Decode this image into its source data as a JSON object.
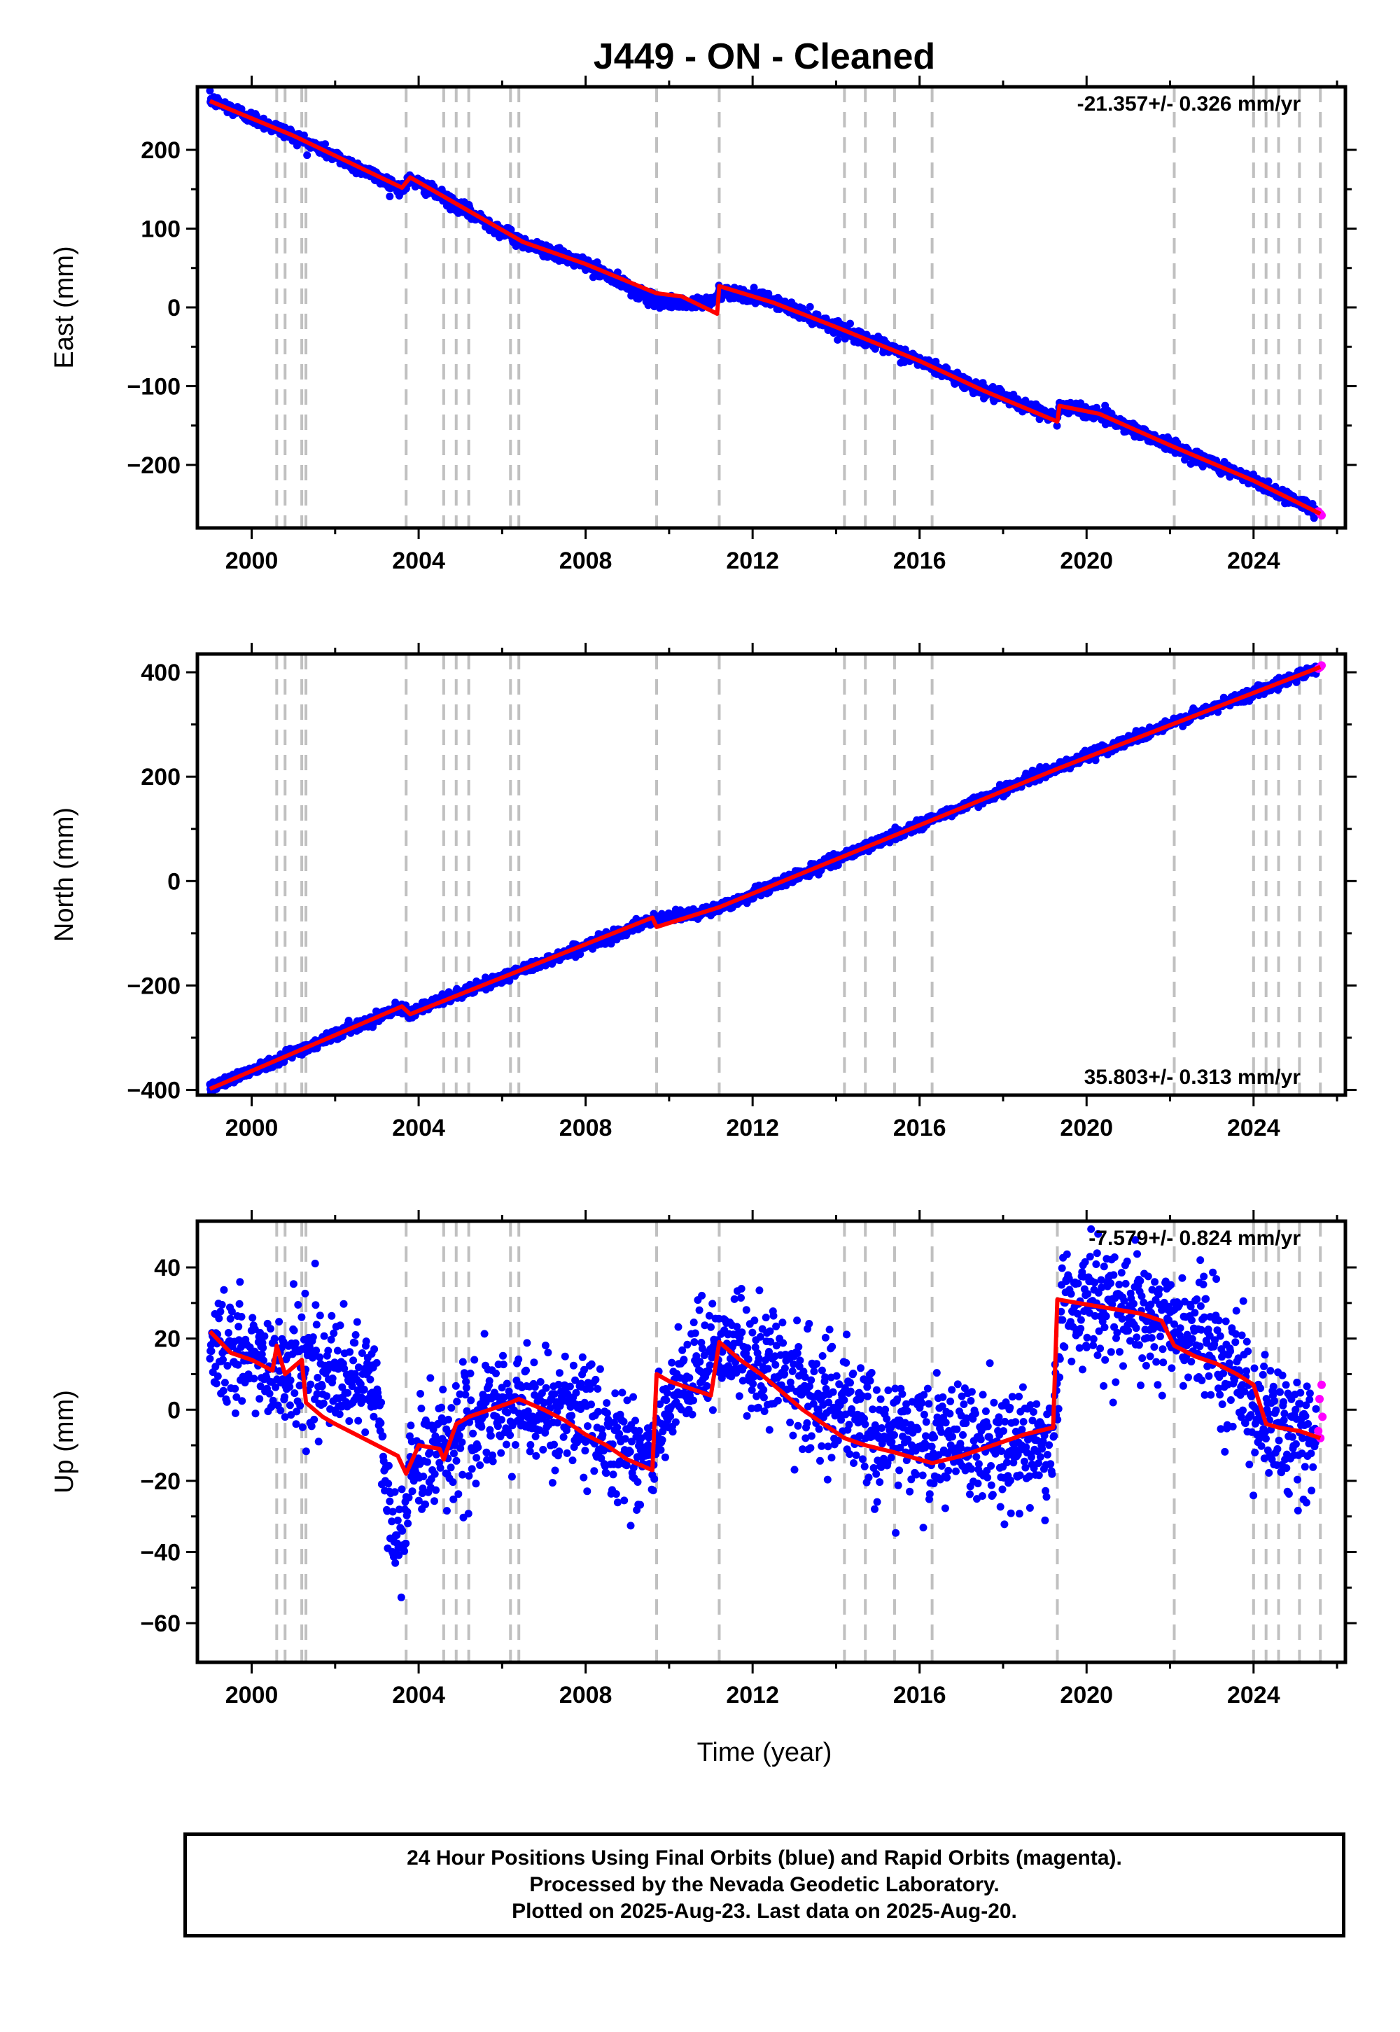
{
  "figure": {
    "title": "J449  - ON - Cleaned",
    "xlabel": "Time (year)",
    "footer": [
      "24 Hour Positions Using Final Orbits (blue) and Rapid Orbits (magenta).",
      "Processed by the Nevada Geodetic Laboratory.",
      "Plotted on 2025-Aug-23. Last data on 2025-Aug-20."
    ]
  },
  "colors": {
    "final_orbits": "#0000ff",
    "rapid_orbits": "#ff00ff",
    "model": "#ff0000",
    "step_lines": "#c0c0c0",
    "frame": "#000000"
  },
  "chart_data": [
    {
      "type": "scatter",
      "component": "East",
      "ylabel": "East (mm)",
      "xlim": [
        1998.7,
        2026.2
      ],
      "ylim": [
        -280,
        280
      ],
      "x_ticks": [
        2000,
        2004,
        2008,
        2012,
        2016,
        2020,
        2024
      ],
      "y_ticks": [
        -200,
        -100,
        0,
        100,
        200
      ],
      "rate_label": "-21.357+/- 0.326 mm/yr",
      "rate_label_position": "top-right",
      "step_epochs": [
        2000.6,
        2000.8,
        2001.2,
        2001.3,
        2003.7,
        2004.6,
        2004.9,
        2005.2,
        2006.2,
        2006.4,
        2009.7,
        2011.2,
        2014.2,
        2014.7,
        2015.4,
        2016.3,
        2022.1,
        2024.0,
        2024.3,
        2024.6,
        2025.1,
        2025.6
      ],
      "model": {
        "x": [
          1999.0,
          2001.0,
          2003.6,
          2003.8,
          2006.5,
          2008.0,
          2009.6,
          2009.7,
          2010.3,
          2011.15,
          2011.2,
          2012.5,
          2014.0,
          2016.0,
          2017.5,
          2019.3,
          2019.35,
          2020.3,
          2022.0,
          2024.0,
          2025.6
        ],
        "y": [
          262,
          218,
          152,
          165,
          83,
          55,
          20,
          18,
          14,
          -8,
          27,
          6,
          -25,
          -68,
          -105,
          -145,
          -125,
          -135,
          -175,
          -220,
          -262
        ]
      },
      "final_orbits_trend": {
        "x": [
          1999.0,
          2001.0,
          2003.6,
          2003.8,
          2006.5,
          2008.0,
          2009.6,
          2010.5,
          2011.15,
          2011.2,
          2012.5,
          2014.0,
          2016.0,
          2017.5,
          2019.3,
          2019.35,
          2020.3,
          2022.0,
          2024.0,
          2025.5
        ],
        "y": [
          264,
          218,
          150,
          163,
          82,
          55,
          10,
          3,
          10,
          22,
          8,
          -25,
          -68,
          -105,
          -140,
          -125,
          -135,
          -175,
          -220,
          -258
        ]
      },
      "final_orbits_scatter_mm": 4,
      "rapid_orbits": {
        "x": [
          2025.55,
          2025.6,
          2025.63
        ],
        "y": [
          -259,
          -262,
          -264
        ]
      }
    },
    {
      "type": "scatter",
      "component": "North",
      "ylabel": "North (mm)",
      "xlim": [
        1998.7,
        2026.2
      ],
      "ylim": [
        -410,
        435
      ],
      "x_ticks": [
        2000,
        2004,
        2008,
        2012,
        2016,
        2020,
        2024
      ],
      "y_ticks": [
        -400,
        -200,
        0,
        200,
        400
      ],
      "rate_label": "35.803+/- 0.313 mm/yr",
      "rate_label_position": "bottom-right",
      "step_epochs": [
        2000.6,
        2000.8,
        2001.2,
        2001.3,
        2003.7,
        2004.6,
        2004.9,
        2005.2,
        2006.2,
        2006.4,
        2009.7,
        2011.2,
        2014.2,
        2014.7,
        2015.4,
        2016.3,
        2022.1,
        2024.0,
        2024.3,
        2024.6,
        2025.1,
        2025.6
      ],
      "model": {
        "x": [
          1999.0,
          2003.6,
          2003.8,
          2009.6,
          2009.7,
          2011.2,
          2019.3,
          2025.6
        ],
        "y": [
          -398,
          -240,
          -255,
          -70,
          -88,
          -50,
          215,
          410
        ]
      },
      "final_orbits_trend": {
        "x": [
          1999.0,
          2003.6,
          2003.8,
          2009.6,
          2010.3,
          2011.2,
          2019.3,
          2025.5
        ],
        "y": [
          -396,
          -240,
          -252,
          -75,
          -65,
          -52,
          218,
          407
        ]
      },
      "final_orbits_scatter_mm": 5,
      "rapid_orbits": {
        "x": [
          2025.55,
          2025.6,
          2025.63
        ],
        "y": [
          407,
          410,
          413
        ]
      }
    },
    {
      "type": "scatter",
      "component": "Up",
      "ylabel": "Up (mm)",
      "xlim": [
        1998.7,
        2026.2
      ],
      "ylim": [
        -71,
        53
      ],
      "x_ticks": [
        2000,
        2004,
        2008,
        2012,
        2016,
        2020,
        2024
      ],
      "y_ticks": [
        -60,
        -40,
        -20,
        0,
        20,
        40
      ],
      "rate_label": "-7.579+/- 0.824 mm/yr",
      "rate_label_position": "top-right",
      "step_epochs": [
        2000.6,
        2000.8,
        2001.2,
        2001.3,
        2003.7,
        2004.6,
        2004.9,
        2005.2,
        2006.2,
        2006.4,
        2009.7,
        2011.2,
        2014.2,
        2014.7,
        2015.4,
        2016.3,
        2019.3,
        2022.1,
        2024.0,
        2024.3,
        2024.6,
        2025.1,
        2025.6
      ],
      "model": {
        "x": [
          1999.0,
          1999.5,
          2000.0,
          2000.5,
          2000.6,
          2000.8,
          2001.0,
          2001.2,
          2001.3,
          2001.7,
          2002.0,
          2002.5,
          2003.0,
          2003.5,
          2003.7,
          2004.0,
          2004.5,
          2004.6,
          2004.9,
          2005.2,
          2005.7,
          2006.2,
          2006.4,
          2007.0,
          2007.5,
          2008.0,
          2008.5,
          2009.0,
          2009.6,
          2009.7,
          2010.0,
          2010.5,
          2011.0,
          2011.2,
          2011.7,
          2012.2,
          2012.7,
          2013.2,
          2013.7,
          2014.2,
          2014.7,
          2015.4,
          2016.3,
          2017.0,
          2017.5,
          2018.0,
          2018.5,
          2019.2,
          2019.3,
          2019.8,
          2020.3,
          2020.8,
          2021.3,
          2021.8,
          2022.1,
          2022.6,
          2023.1,
          2023.6,
          2024.0,
          2024.3,
          2024.6,
          2025.1,
          2025.6
        ],
        "y": [
          22,
          16,
          14,
          11,
          18,
          10,
          12,
          14,
          2,
          -2,
          -4,
          -7,
          -10,
          -13,
          -18,
          -10,
          -11,
          -14,
          -4,
          -2,
          0,
          2,
          3,
          0,
          -3,
          -7,
          -10,
          -14,
          -17,
          10,
          8,
          6,
          4,
          19,
          14,
          10,
          5,
          0,
          -4,
          -8,
          -10,
          -12,
          -15,
          -13,
          -11,
          -9,
          -7,
          -5,
          31,
          30,
          29,
          28,
          27,
          25,
          18,
          15,
          13,
          10,
          7,
          -4,
          -5,
          -6,
          -8
        ]
      },
      "final_orbits_trend": {
        "x": [
          1999.0,
          2000.0,
          2001.0,
          2001.3,
          2002.0,
          2003.0,
          2003.4,
          2003.6,
          2003.8,
          2004.2,
          2005.0,
          2006.5,
          2008.0,
          2009.0,
          2009.6,
          2009.8,
          2010.5,
          2011.2,
          2012.0,
          2013.0,
          2014.0,
          2015.0,
          2016.0,
          2017.0,
          2018.0,
          2019.2,
          2019.4,
          2020.0,
          2021.0,
          2022.0,
          2023.0,
          2023.6,
          2024.0,
          2025.0,
          2025.5
        ],
        "y": [
          18,
          14,
          12,
          14,
          8,
          5,
          -40,
          -35,
          -18,
          -12,
          -6,
          2,
          -3,
          -10,
          -14,
          -5,
          8,
          20,
          14,
          8,
          0,
          -6,
          -9,
          -10,
          -11,
          -10,
          28,
          32,
          28,
          24,
          18,
          12,
          -2,
          -6,
          -8
        ]
      },
      "final_orbits_scatter_mm": 8,
      "rapid_orbits": {
        "x": [
          2025.55,
          2025.58,
          2025.6,
          2025.63,
          2025.65
        ],
        "y": [
          -6,
          3,
          -8,
          7,
          -2
        ]
      }
    }
  ]
}
